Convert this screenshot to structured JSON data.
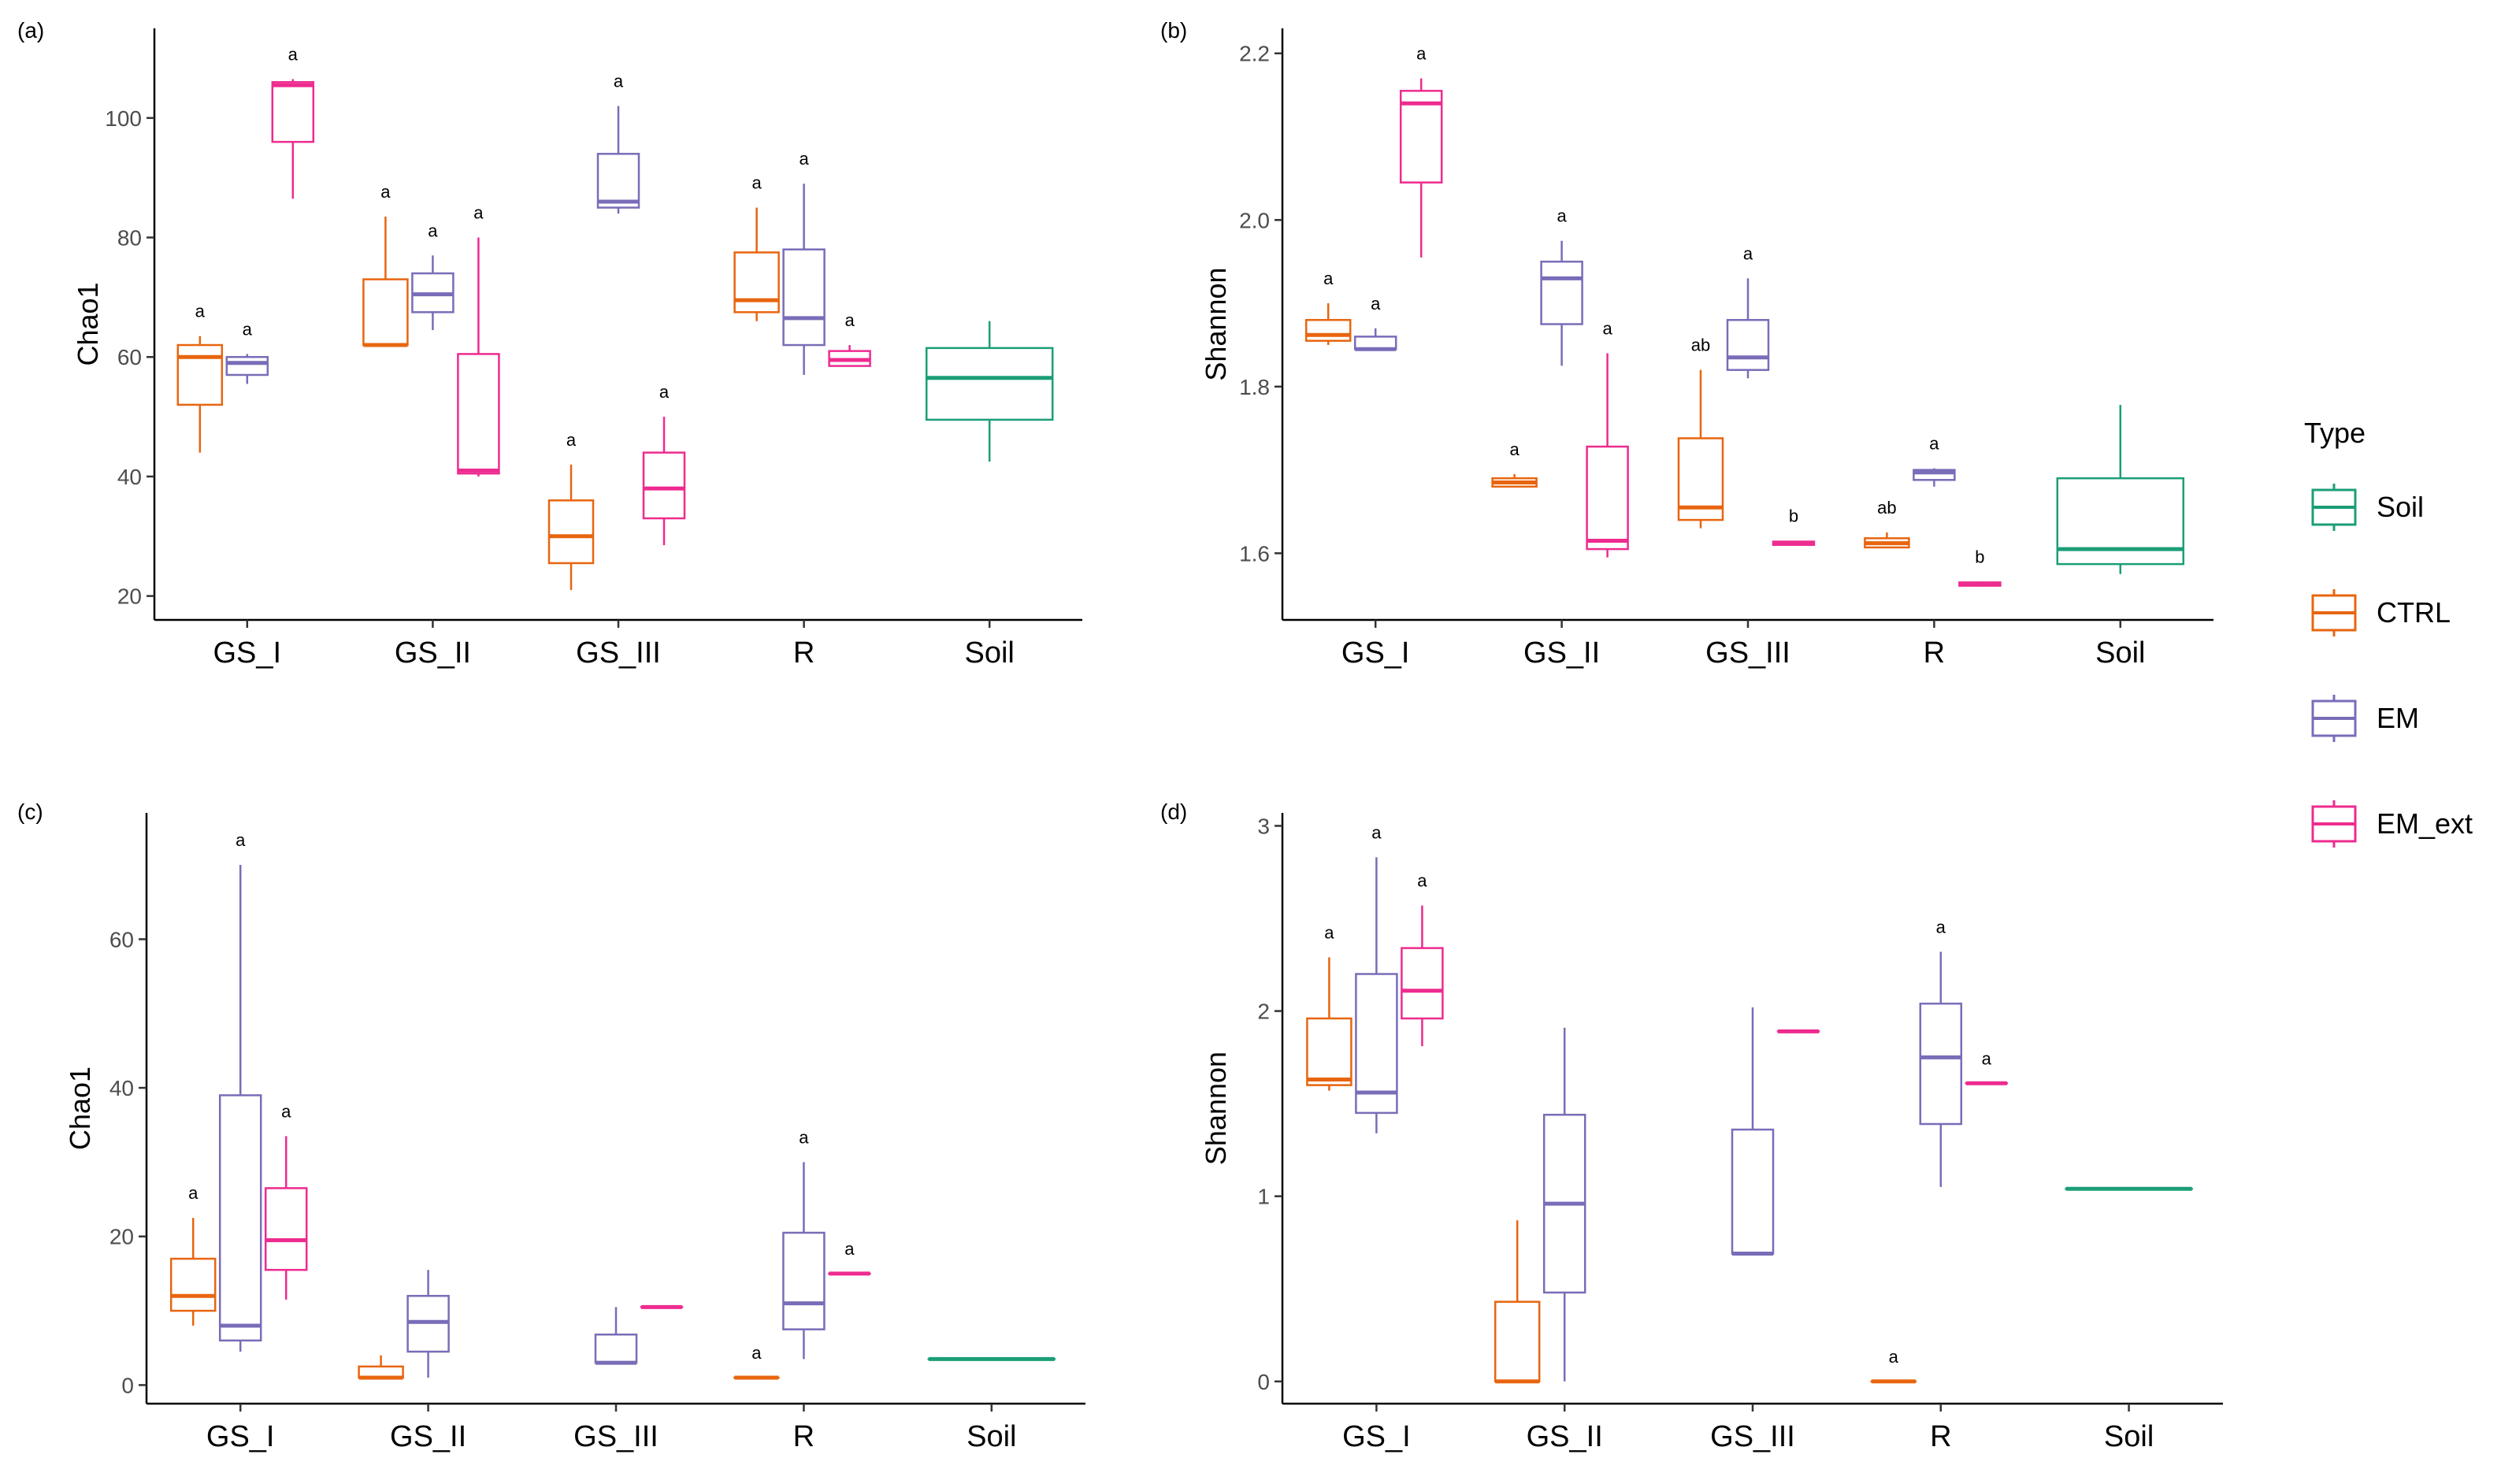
{
  "legend": {
    "title": "Type",
    "items": [
      {
        "label": "Soil",
        "color": "#1b9e77"
      },
      {
        "label": "CTRL",
        "color": "#e8650f"
      },
      {
        "label": "EM",
        "color": "#7a6cb8"
      },
      {
        "label": "EM_ext",
        "color": "#ee2b8f"
      }
    ]
  },
  "chart_data": [
    {
      "type": "boxplot",
      "panel": "(a)",
      "ylabel": "Chao1",
      "xlabel": "",
      "categories": [
        "GS_I",
        "GS_II",
        "GS_III",
        "R",
        "Soil"
      ],
      "ylim": [
        16,
        115
      ],
      "yticks": [
        20,
        40,
        60,
        80,
        100
      ],
      "yticklabels": [
        "20",
        "40",
        "60",
        "80",
        "100"
      ],
      "boxes": [
        {
          "category": "GS_I",
          "type": "CTRL",
          "min": 44,
          "q1": 52,
          "median": 60,
          "q3": 62,
          "max": 63.5,
          "label": "a"
        },
        {
          "category": "GS_I",
          "type": "EM",
          "min": 55.5,
          "q1": 57,
          "median": 59,
          "q3": 60,
          "max": 60.5,
          "label": "a"
        },
        {
          "category": "GS_I",
          "type": "EM_ext",
          "min": 86.5,
          "q1": 96,
          "median": 105.5,
          "q3": 106,
          "max": 106.5,
          "label": "a"
        },
        {
          "category": "GS_II",
          "type": "CTRL",
          "min": 62,
          "q1": 62,
          "median": 62,
          "q3": 73,
          "max": 83.5,
          "label": "a"
        },
        {
          "category": "GS_II",
          "type": "EM",
          "min": 64.5,
          "q1": 67.5,
          "median": 70.5,
          "q3": 74,
          "max": 77,
          "label": "a"
        },
        {
          "category": "GS_II",
          "type": "EM_ext",
          "min": 40,
          "q1": 40.5,
          "median": 41,
          "q3": 60.5,
          "max": 80,
          "label": "a"
        },
        {
          "category": "GS_III",
          "type": "CTRL",
          "min": 21,
          "q1": 25.5,
          "median": 30,
          "q3": 36,
          "max": 42,
          "label": "a"
        },
        {
          "category": "GS_III",
          "type": "EM",
          "min": 84,
          "q1": 85,
          "median": 86,
          "q3": 94,
          "max": 102,
          "label": "a"
        },
        {
          "category": "GS_III",
          "type": "EM_ext",
          "min": 28.5,
          "q1": 33,
          "median": 38,
          "q3": 44,
          "max": 50,
          "label": "a"
        },
        {
          "category": "R",
          "type": "CTRL",
          "min": 66,
          "q1": 67.5,
          "median": 69.5,
          "q3": 77.5,
          "max": 85,
          "label": "a"
        },
        {
          "category": "R",
          "type": "EM",
          "min": 57,
          "q1": 62,
          "median": 66.5,
          "q3": 78,
          "max": 89,
          "label": "a"
        },
        {
          "category": "R",
          "type": "EM_ext",
          "min": 58.5,
          "q1": 58.5,
          "median": 59.5,
          "q3": 61,
          "max": 62,
          "label": "a"
        },
        {
          "category": "Soil",
          "type": "Soil",
          "min": 42.5,
          "q1": 49.5,
          "median": 56.5,
          "q3": 61.5,
          "max": 66,
          "label": ""
        }
      ]
    },
    {
      "type": "boxplot",
      "panel": "(b)",
      "ylabel": "Shannon",
      "xlabel": "",
      "categories": [
        "GS_I",
        "GS_II",
        "GS_III",
        "R",
        "Soil"
      ],
      "ylim": [
        1.52,
        2.23
      ],
      "yticks": [
        1.6,
        1.8,
        2.0,
        2.2
      ],
      "yticklabels": [
        "1.6",
        "1.8",
        "2.0",
        "2.2"
      ],
      "boxes": [
        {
          "category": "GS_I",
          "type": "CTRL",
          "min": 1.85,
          "q1": 1.855,
          "median": 1.862,
          "q3": 1.88,
          "max": 1.9,
          "label": "a"
        },
        {
          "category": "GS_I",
          "type": "EM",
          "min": 1.845,
          "q1": 1.845,
          "median": 1.845,
          "q3": 1.86,
          "max": 1.87,
          "label": "a"
        },
        {
          "category": "GS_I",
          "type": "EM_ext",
          "min": 1.955,
          "q1": 2.045,
          "median": 2.14,
          "q3": 2.155,
          "max": 2.17,
          "label": "a"
        },
        {
          "category": "GS_II",
          "type": "CTRL",
          "min": 1.68,
          "q1": 1.68,
          "median": 1.685,
          "q3": 1.69,
          "max": 1.695,
          "label": "a"
        },
        {
          "category": "GS_II",
          "type": "EM",
          "min": 1.825,
          "q1": 1.875,
          "median": 1.93,
          "q3": 1.95,
          "max": 1.975,
          "label": "a"
        },
        {
          "category": "GS_II",
          "type": "EM_ext",
          "min": 1.595,
          "q1": 1.605,
          "median": 1.615,
          "q3": 1.728,
          "max": 1.84,
          "label": "a"
        },
        {
          "category": "GS_III",
          "type": "CTRL",
          "min": 1.63,
          "q1": 1.64,
          "median": 1.655,
          "q3": 1.738,
          "max": 1.82,
          "label": "ab"
        },
        {
          "category": "GS_III",
          "type": "EM",
          "min": 1.81,
          "q1": 1.82,
          "median": 1.835,
          "q3": 1.88,
          "max": 1.93,
          "label": "a"
        },
        {
          "category": "GS_III",
          "type": "EM_ext",
          "min": 1.61,
          "q1": 1.61,
          "median": 1.612,
          "q3": 1.614,
          "max": 1.615,
          "label": "b"
        },
        {
          "category": "R",
          "type": "CTRL",
          "min": 1.607,
          "q1": 1.607,
          "median": 1.612,
          "q3": 1.618,
          "max": 1.625,
          "label": "ab"
        },
        {
          "category": "R",
          "type": "EM",
          "min": 1.68,
          "q1": 1.688,
          "median": 1.697,
          "q3": 1.7,
          "max": 1.702,
          "label": "a"
        },
        {
          "category": "R",
          "type": "EM_ext",
          "min": 1.56,
          "q1": 1.561,
          "median": 1.563,
          "q3": 1.565,
          "max": 1.566,
          "label": "b"
        },
        {
          "category": "Soil",
          "type": "Soil",
          "min": 1.575,
          "q1": 1.587,
          "median": 1.605,
          "q3": 1.69,
          "max": 1.778,
          "label": ""
        }
      ]
    },
    {
      "type": "boxplot",
      "panel": "(c)",
      "ylabel": "Chao1",
      "xlabel": "",
      "categories": [
        "GS_I",
        "GS_II",
        "GS_III",
        "R",
        "Soil"
      ],
      "ylim": [
        -2.5,
        77
      ],
      "yticks": [
        0,
        20,
        40,
        60
      ],
      "yticklabels": [
        "0",
        "20",
        "40",
        "60"
      ],
      "boxes": [
        {
          "category": "GS_I",
          "type": "CTRL",
          "min": 8,
          "q1": 10,
          "median": 12,
          "q3": 17,
          "max": 22.5,
          "label": "a"
        },
        {
          "category": "GS_I",
          "type": "EM",
          "min": 4.5,
          "q1": 6,
          "median": 8,
          "q3": 39,
          "max": 70,
          "label": "a"
        },
        {
          "category": "GS_I",
          "type": "EM_ext",
          "min": 11.5,
          "q1": 15.5,
          "median": 19.5,
          "q3": 26.5,
          "max": 33.5,
          "label": "a"
        },
        {
          "category": "GS_II",
          "type": "CTRL",
          "min": 1,
          "q1": 1,
          "median": 1,
          "q3": 2.5,
          "max": 4,
          "label": ""
        },
        {
          "category": "GS_II",
          "type": "EM",
          "min": 1,
          "q1": 4.5,
          "median": 8.5,
          "q3": 12,
          "max": 15.5,
          "label": ""
        },
        {
          "category": "GS_II",
          "type": "EM_ext",
          "min": null,
          "q1": null,
          "median": null,
          "q3": null,
          "max": null,
          "label": ""
        },
        {
          "category": "GS_III",
          "type": "CTRL",
          "min": null,
          "q1": null,
          "median": null,
          "q3": null,
          "max": null,
          "label": ""
        },
        {
          "category": "GS_III",
          "type": "EM",
          "min": 3,
          "q1": 3,
          "median": 3,
          "q3": 6.8,
          "max": 10.5,
          "label": ""
        },
        {
          "category": "GS_III",
          "type": "EM_ext",
          "min": 10.5,
          "q1": 10.5,
          "median": 10.5,
          "q3": 10.5,
          "max": 10.5,
          "label": ""
        },
        {
          "category": "R",
          "type": "CTRL",
          "min": 1,
          "q1": 1,
          "median": 1,
          "q3": 1,
          "max": 1,
          "label": "a"
        },
        {
          "category": "R",
          "type": "EM",
          "min": 3.5,
          "q1": 7.5,
          "median": 11,
          "q3": 20.5,
          "max": 30,
          "label": "a"
        },
        {
          "category": "R",
          "type": "EM_ext",
          "min": 15,
          "q1": 15,
          "median": 15,
          "q3": 15,
          "max": 15,
          "label": "a"
        },
        {
          "category": "Soil",
          "type": "Soil",
          "min": 3.5,
          "q1": 3.5,
          "median": 3.5,
          "q3": 3.5,
          "max": 3.5,
          "label": ""
        }
      ]
    },
    {
      "type": "boxplot",
      "panel": "(d)",
      "ylabel": "Shannon",
      "xlabel": "",
      "categories": [
        "GS_I",
        "GS_II",
        "GS_III",
        "R",
        "Soil"
      ],
      "ylim": [
        -0.12,
        3.07
      ],
      "yticks": [
        0,
        1,
        2,
        3
      ],
      "yticklabels": [
        "0",
        "1",
        "2",
        "3"
      ],
      "boxes": [
        {
          "category": "GS_I",
          "type": "CTRL",
          "min": 1.57,
          "q1": 1.6,
          "median": 1.63,
          "q3": 1.96,
          "max": 2.29,
          "label": "a"
        },
        {
          "category": "GS_I",
          "type": "EM",
          "min": 1.34,
          "q1": 1.45,
          "median": 1.56,
          "q3": 2.2,
          "max": 2.83,
          "label": "a"
        },
        {
          "category": "GS_I",
          "type": "EM_ext",
          "min": 1.81,
          "q1": 1.96,
          "median": 2.11,
          "q3": 2.34,
          "max": 2.57,
          "label": "a"
        },
        {
          "category": "GS_II",
          "type": "CTRL",
          "min": 0,
          "q1": 0,
          "median": 0,
          "q3": 0.43,
          "max": 0.87,
          "label": ""
        },
        {
          "category": "GS_II",
          "type": "EM",
          "min": 0,
          "q1": 0.48,
          "median": 0.96,
          "q3": 1.44,
          "max": 1.91,
          "label": ""
        },
        {
          "category": "GS_II",
          "type": "EM_ext",
          "min": null,
          "q1": null,
          "median": null,
          "q3": null,
          "max": null,
          "label": ""
        },
        {
          "category": "GS_III",
          "type": "CTRL",
          "min": null,
          "q1": null,
          "median": null,
          "q3": null,
          "max": null,
          "label": ""
        },
        {
          "category": "GS_III",
          "type": "EM",
          "min": 0.69,
          "q1": 0.69,
          "median": 0.69,
          "q3": 1.36,
          "max": 2.02,
          "label": ""
        },
        {
          "category": "GS_III",
          "type": "EM_ext",
          "min": 1.89,
          "q1": 1.89,
          "median": 1.89,
          "q3": 1.89,
          "max": 1.89,
          "label": ""
        },
        {
          "category": "R",
          "type": "CTRL",
          "min": 0,
          "q1": 0,
          "median": 0,
          "q3": 0,
          "max": 0,
          "label": "a"
        },
        {
          "category": "R",
          "type": "EM",
          "min": 1.05,
          "q1": 1.39,
          "median": 1.75,
          "q3": 2.04,
          "max": 2.32,
          "label": "a"
        },
        {
          "category": "R",
          "type": "EM_ext",
          "min": 1.61,
          "q1": 1.61,
          "median": 1.61,
          "q3": 1.61,
          "max": 1.61,
          "label": "a"
        },
        {
          "category": "Soil",
          "type": "Soil",
          "min": 1.04,
          "q1": 1.04,
          "median": 1.04,
          "q3": 1.04,
          "max": 1.04,
          "label": ""
        }
      ]
    }
  ]
}
